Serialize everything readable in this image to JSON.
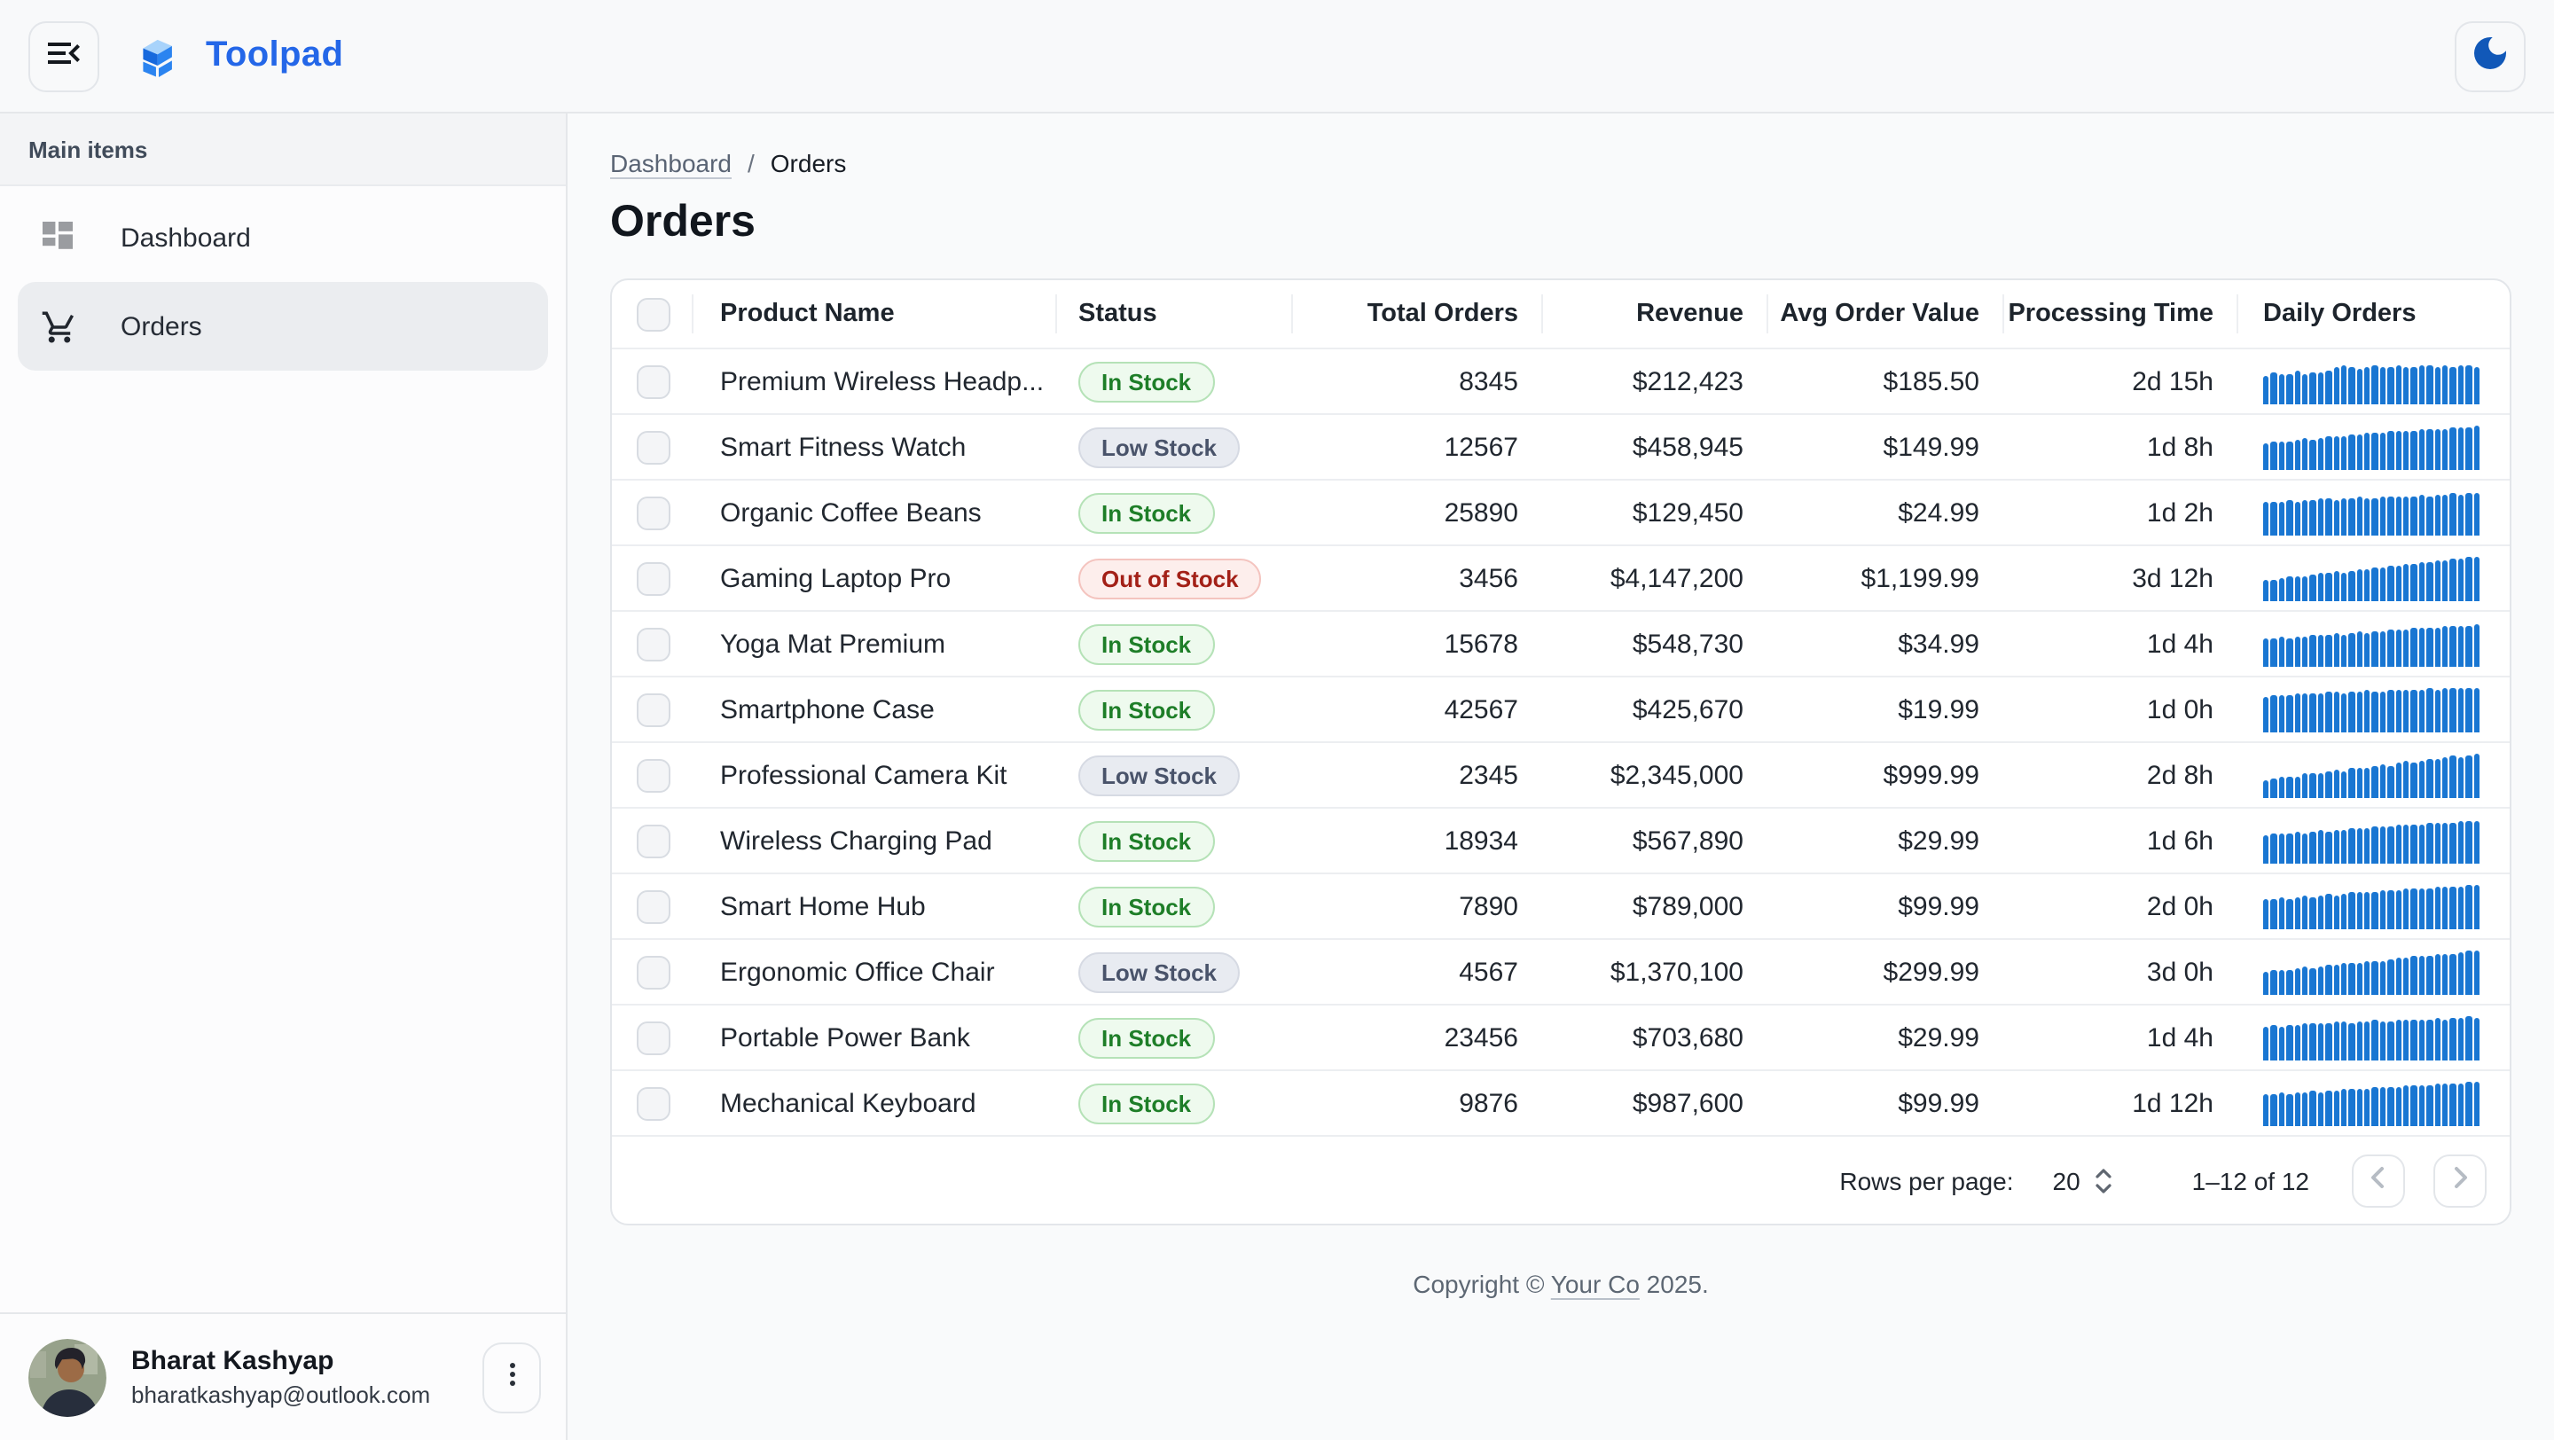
{
  "topbar": {
    "app_name": "Toolpad"
  },
  "sidebar": {
    "section_label": "Main items",
    "items": [
      {
        "label": "Dashboard"
      },
      {
        "label": "Orders"
      }
    ],
    "user": {
      "name": "Bharat Kashyap",
      "email": "bharatkashyap@outlook.com"
    }
  },
  "breadcrumb": {
    "parent": "Dashboard",
    "separator": "/",
    "current": "Orders"
  },
  "page": {
    "title": "Orders"
  },
  "table": {
    "columns": [
      "Product Name",
      "Status",
      "Total Orders",
      "Revenue",
      "Avg Order Value",
      "Processing Time",
      "Daily Orders"
    ],
    "rows": [
      {
        "name": "Premium Wireless Headp...",
        "status": "In Stock",
        "total_orders": "8345",
        "revenue": "$212,423",
        "avg_order_value": "$185.50",
        "processing_time": "2d 15h",
        "daily_orders": [
          62,
          68,
          64,
          66,
          72,
          65,
          70,
          68,
          74,
          80,
          85,
          82,
          78,
          80,
          83,
          79,
          81,
          84,
          80,
          82,
          85,
          83,
          80,
          84,
          82,
          86,
          83,
          80
        ]
      },
      {
        "name": "Smart Fitness Watch",
        "status": "Low Stock",
        "total_orders": "12567",
        "revenue": "$458,945",
        "avg_order_value": "$149.99",
        "processing_time": "1d 8h",
        "daily_orders": [
          58,
          60,
          63,
          61,
          65,
          68,
          66,
          70,
          72,
          74,
          73,
          76,
          78,
          80,
          79,
          82,
          84,
          83,
          86,
          85,
          88,
          87,
          90,
          89,
          92,
          94,
          93,
          96
        ]
      },
      {
        "name": "Organic Coffee Beans",
        "status": "In Stock",
        "total_orders": "25890",
        "revenue": "$129,450",
        "avg_order_value": "$24.99",
        "processing_time": "1d 2h",
        "daily_orders": [
          72,
          74,
          73,
          76,
          75,
          78,
          77,
          80,
          79,
          78,
          81,
          80,
          83,
          82,
          81,
          84,
          83,
          86,
          85,
          84,
          87,
          86,
          89,
          88,
          91,
          90,
          93,
          92
        ]
      },
      {
        "name": "Gaming Laptop Pro",
        "status": "Out of Stock",
        "total_orders": "3456",
        "revenue": "$4,147,200",
        "avg_order_value": "$1,199.99",
        "processing_time": "3d 12h",
        "daily_orders": [
          45,
          48,
          50,
          52,
          55,
          54,
          58,
          60,
          62,
          64,
          63,
          67,
          69,
          71,
          73,
          72,
          76,
          78,
          80,
          82,
          84,
          86,
          88,
          90,
          92,
          94,
          96,
          98
        ]
      },
      {
        "name": "Yoga Mat Premium",
        "status": "In Stock",
        "total_orders": "15678",
        "revenue": "$548,730",
        "avg_order_value": "$34.99",
        "processing_time": "1d 4h",
        "daily_orders": [
          60,
          62,
          64,
          63,
          66,
          65,
          68,
          70,
          69,
          72,
          71,
          74,
          76,
          75,
          78,
          77,
          80,
          82,
          81,
          84,
          83,
          86,
          85,
          88,
          87,
          90,
          89,
          92
        ]
      },
      {
        "name": "Smartphone Case",
        "status": "In Stock",
        "total_orders": "42567",
        "revenue": "$425,670",
        "avg_order_value": "$19.99",
        "processing_time": "1d 0h",
        "daily_orders": [
          78,
          80,
          82,
          81,
          84,
          83,
          86,
          85,
          88,
          87,
          86,
          89,
          88,
          91,
          90,
          89,
          92,
          91,
          94,
          93,
          92,
          95,
          94,
          96,
          95,
          97,
          96,
          98
        ]
      },
      {
        "name": "Professional Camera Kit",
        "status": "Low Stock",
        "total_orders": "2345",
        "revenue": "$2,345,000",
        "avg_order_value": "$999.99",
        "processing_time": "2d 8h",
        "daily_orders": [
          38,
          42,
          45,
          48,
          46,
          52,
          55,
          53,
          58,
          61,
          59,
          64,
          67,
          65,
          70,
          73,
          71,
          76,
          79,
          77,
          82,
          85,
          83,
          88,
          91,
          89,
          94,
          97
        ]
      },
      {
        "name": "Wireless Charging Pad",
        "status": "In Stock",
        "total_orders": "18934",
        "revenue": "$567,890",
        "avg_order_value": "$29.99",
        "processing_time": "1d 6h",
        "daily_orders": [
          62,
          64,
          66,
          65,
          68,
          67,
          70,
          72,
          71,
          74,
          73,
          76,
          78,
          77,
          80,
          79,
          82,
          84,
          83,
          86,
          85,
          88,
          87,
          90,
          89,
          92,
          91,
          94
        ]
      },
      {
        "name": "Smart Home Hub",
        "status": "In Stock",
        "total_orders": "7890",
        "revenue": "$789,000",
        "avg_order_value": "$99.99",
        "processing_time": "2d 0h",
        "daily_orders": [
          64,
          66,
          68,
          67,
          70,
          72,
          71,
          74,
          76,
          75,
          78,
          80,
          79,
          82,
          81,
          84,
          86,
          85,
          88,
          87,
          90,
          89,
          92,
          91,
          94,
          93,
          96,
          95
        ]
      },
      {
        "name": "Ergonomic Office Chair",
        "status": "Low Stock",
        "total_orders": "4567",
        "revenue": "$1,370,100",
        "avg_order_value": "$299.99",
        "processing_time": "3d 0h",
        "daily_orders": [
          50,
          53,
          55,
          54,
          58,
          60,
          59,
          63,
          65,
          64,
          68,
          70,
          69,
          73,
          75,
          74,
          78,
          80,
          79,
          83,
          85,
          84,
          88,
          90,
          89,
          93,
          95,
          97
        ]
      },
      {
        "name": "Portable Power Bank",
        "status": "In Stock",
        "total_orders": "23456",
        "revenue": "$703,680",
        "avg_order_value": "$29.99",
        "processing_time": "1d 4h",
        "daily_orders": [
          74,
          76,
          75,
          78,
          77,
          80,
          79,
          82,
          81,
          84,
          83,
          82,
          85,
          84,
          87,
          86,
          85,
          88,
          87,
          90,
          89,
          88,
          91,
          90,
          93,
          92,
          95,
          94
        ]
      },
      {
        "name": "Mechanical Keyboard",
        "status": "In Stock",
        "total_orders": "9876",
        "revenue": "$987,600",
        "avg_order_value": "$99.99",
        "processing_time": "1d 12h",
        "daily_orders": [
          68,
          70,
          72,
          71,
          74,
          73,
          76,
          75,
          78,
          77,
          80,
          79,
          82,
          81,
          84,
          83,
          86,
          85,
          88,
          87,
          90,
          89,
          92,
          91,
          94,
          93,
          96,
          95
        ]
      }
    ]
  },
  "pagination": {
    "rows_per_page_label": "Rows per page:",
    "rows_per_page": "20",
    "range": "1–12 of 12"
  },
  "footer": {
    "prefix": "Copyright © ",
    "link": "Your Co",
    "suffix": " 2025."
  },
  "icons": {
    "menu": "menu-open-icon",
    "logo": "toolpad-logo",
    "theme": "moon-icon",
    "dashboard": "dashboard-grid-icon",
    "orders": "cart-icon",
    "user_menu": "kebab-icon",
    "prev": "chevron-left-icon",
    "next": "chevron-right-icon",
    "stepper": "up-down-chevrons-icon"
  },
  "colors": {
    "brand_blue": "#2467e8",
    "moon_blue": "#1158b8",
    "spark_blue": "#1976d2",
    "chip_green_text": "#1e7e28",
    "chip_gray_text": "#49536a",
    "chip_red_text": "#a32017",
    "selected_nav_bg": "#ebedf0",
    "card_border": "#e3e6ea"
  }
}
